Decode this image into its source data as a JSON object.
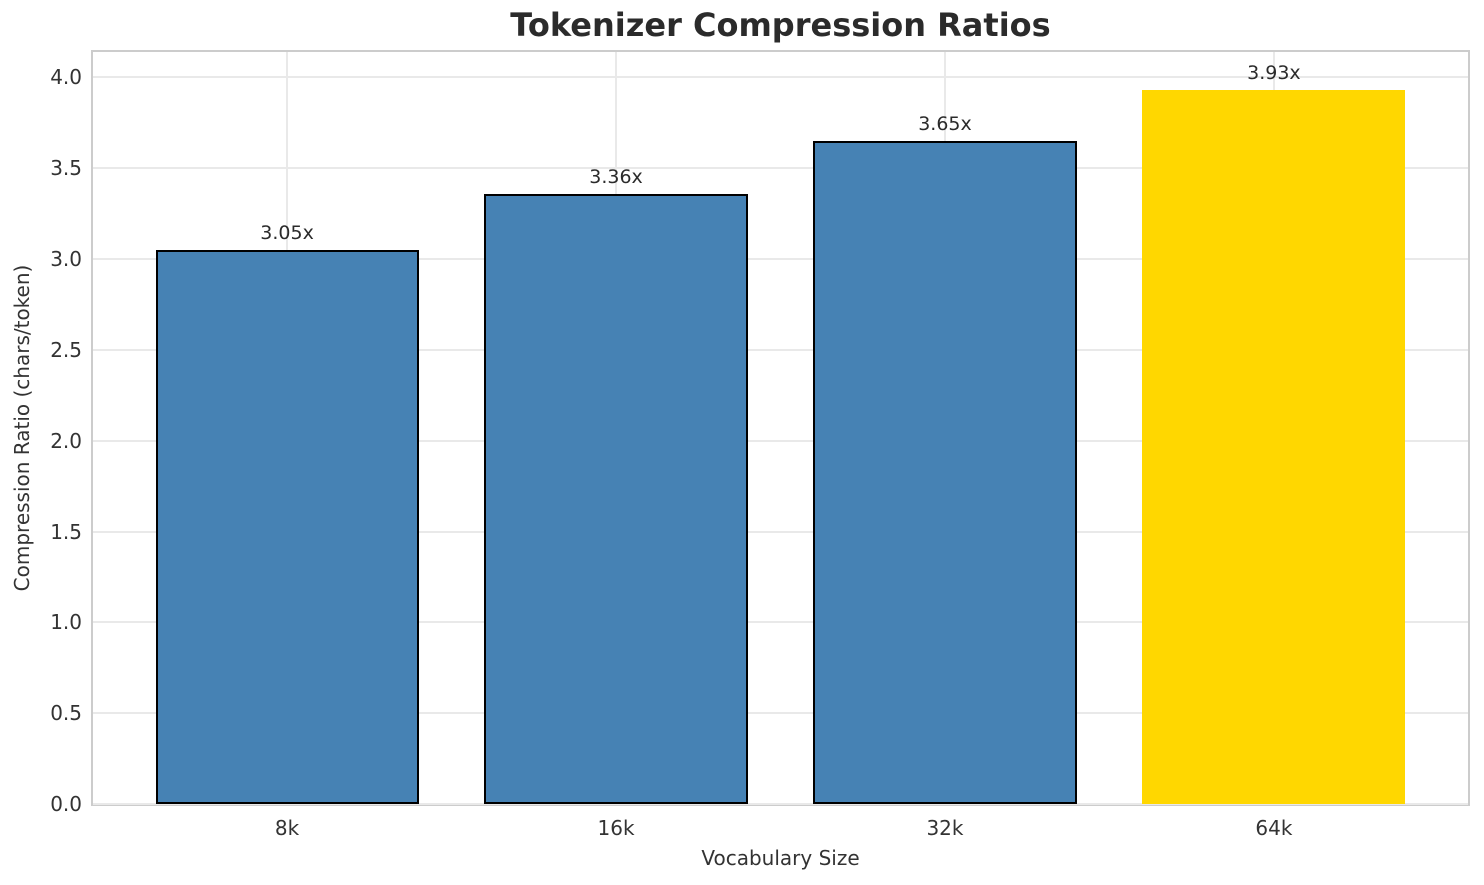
{
  "chart_data": {
    "type": "bar",
    "title": "Tokenizer Compression Ratios",
    "xlabel": "Vocabulary Size",
    "ylabel": "Compression Ratio (chars/token)",
    "categories": [
      "8k",
      "16k",
      "32k",
      "64k"
    ],
    "values": [
      3.05,
      3.36,
      3.65,
      3.93
    ],
    "value_labels": [
      "3.05x",
      "3.36x",
      "3.65x",
      "3.93x"
    ],
    "bar_colors": [
      "#4682B4",
      "#4682B4",
      "#4682B4",
      "#FFD700"
    ],
    "bar_edge_colors": [
      "#000000",
      "#000000",
      "#000000",
      "#FFD700"
    ],
    "highlight_category": "64k",
    "ylim": [
      0,
      4.14
    ],
    "xlim": [
      -0.59,
      3.59
    ],
    "bar_width": 0.8,
    "yticks": [
      0.0,
      0.5,
      1.0,
      1.5,
      2.0,
      2.5,
      3.0,
      3.5,
      4.0
    ],
    "ytick_labels": [
      "0.0",
      "0.5",
      "1.0",
      "1.5",
      "2.0",
      "2.5",
      "3.0",
      "3.5",
      "4.0"
    ],
    "grid": "both",
    "legend": "none",
    "colors": {
      "bar_blue": "#4682B4",
      "bar_gold": "#FFD700",
      "gridline": "#e9e9e9",
      "spine": "#cccccc",
      "text": "#2b2b2b",
      "tick_text": "#333333",
      "background": "#ffffff"
    }
  }
}
